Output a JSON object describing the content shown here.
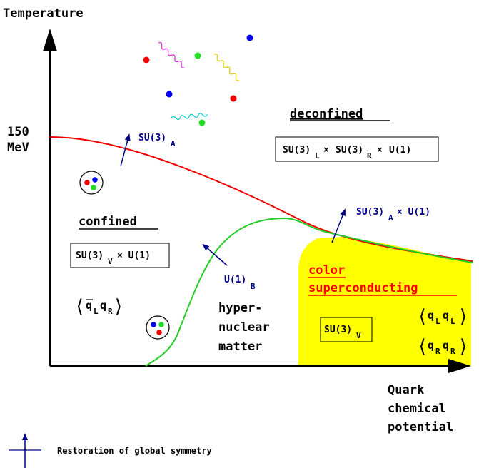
{
  "axes": {
    "y_label": "Temperature",
    "x_label_line1": "Quark",
    "x_label_line2": "chemical",
    "x_label_line3": "potential",
    "y_tick_line1": "150",
    "y_tick_line2": "MeV"
  },
  "phases": {
    "deconfined": "deconfined",
    "confined": "confined",
    "hyper_line1": "hyper-",
    "hyper_line2": "nuclear",
    "hyper_line3": "matter",
    "csc_line1": "color",
    "csc_line2": "superconducting"
  },
  "symmetries": {
    "su3a": {
      "base": "SU(3)",
      "sub": "A"
    },
    "u1b": {
      "base": "U(1)",
      "sub": "B"
    },
    "su3a_u1": {
      "base": "SU(3)",
      "sub": "A",
      "rest": "× U(1)"
    },
    "deconfined_box": "SU(3)L × SU(3)R × U(1)",
    "confined_box": "SU(3)V × U(1)",
    "csc_box": "SU(3)V"
  },
  "condensates": {
    "confined": "⟨q̄L qR⟩",
    "csc_left": "⟨qL qL⟩",
    "csc_right": "⟨qR qR⟩"
  },
  "legend": {
    "label": "Restoration of global symmetry"
  },
  "colors": {
    "red_curve": "#ee0000",
    "green_curve": "#22cc22",
    "csc_fill": "#ffff00",
    "arrow": "#000088",
    "csc_text": "#ff0000"
  }
}
